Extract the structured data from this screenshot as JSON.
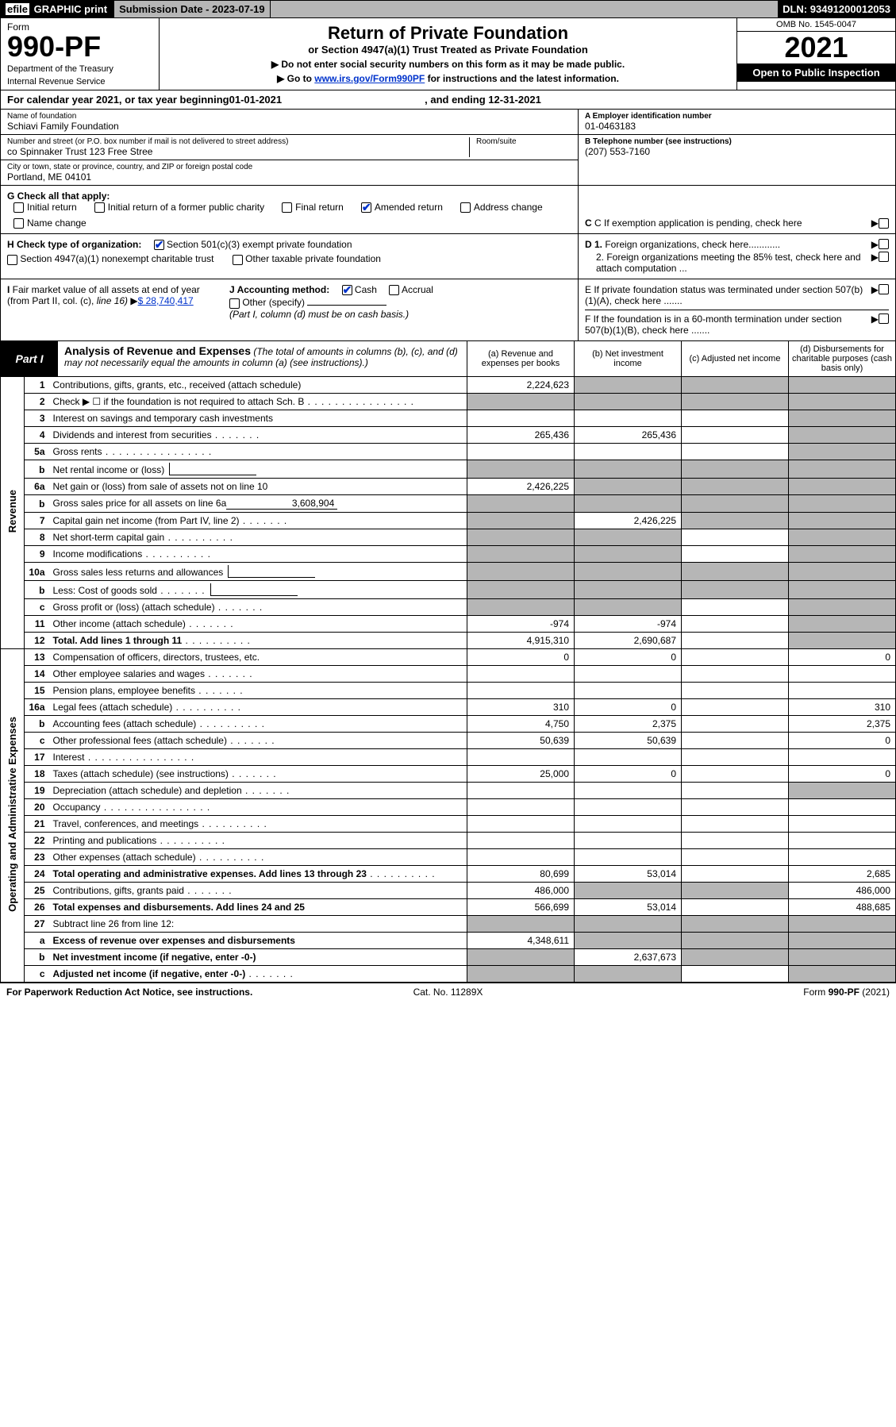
{
  "topbar": {
    "efile_prefix": "efile",
    "efile_rest": " GRAPHIC print",
    "submission_label": "Submission Date - ",
    "submission_date": "2023-07-19",
    "dln_label": "DLN: ",
    "dln": "93491200012053"
  },
  "header": {
    "form_word": "Form",
    "form_number": "990-PF",
    "dept1": "Department of the Treasury",
    "dept2": "Internal Revenue Service",
    "title": "Return of Private Foundation",
    "subtitle": "or Section 4947(a)(1) Trust Treated as Private Foundation",
    "note1": "▶ Do not enter social security numbers on this form as it may be made public.",
    "note2_pre": "▶ Go to ",
    "note2_link": "www.irs.gov/Form990PF",
    "note2_post": " for instructions and the latest information.",
    "omb": "OMB No. 1545-0047",
    "year": "2021",
    "open": "Open to Public Inspection"
  },
  "cal": {
    "pre": "For calendar year 2021, or tax year beginning ",
    "begin": "01-01-2021",
    "mid": ", and ending ",
    "end": "12-31-2021"
  },
  "id": {
    "name_lbl": "Name of foundation",
    "name": "Schiavi Family Foundation",
    "addr_lbl": "Number and street (or P.O. box number if mail is not delivered to street address)",
    "addr": "co Spinnaker Trust 123 Free Stree",
    "room_lbl": "Room/suite",
    "city_lbl": "City or town, state or province, country, and ZIP or foreign postal code",
    "city": "Portland, ME  04101",
    "a_lbl": "A Employer identification number",
    "a_val": "01-0463183",
    "b_lbl": "B Telephone number (see instructions)",
    "b_val": "(207) 553-7160",
    "c_lbl": "C If exemption application is pending, check here",
    "d1_lbl": "D 1. Foreign organizations, check here............",
    "d2_lbl": "2. Foreign organizations meeting the 85% test, check here and attach computation ...",
    "e_lbl": "E  If private foundation status was terminated under section 507(b)(1)(A), check here .......",
    "f_lbl": "F  If the foundation is in a 60-month termination under section 507(b)(1)(B), check here .......",
    "g_pre": "G Check all that apply:",
    "g_items": [
      "Initial return",
      "Initial return of a former public charity",
      "Final return",
      "Amended return",
      "Address change",
      "Name change"
    ],
    "g_checked_index": 3,
    "h_pre": "H Check type of organization:",
    "h_items": [
      "Section 501(c)(3) exempt private foundation",
      "Section 4947(a)(1) nonexempt charitable trust",
      "Other taxable private foundation"
    ],
    "h_checked_index": 0,
    "i_lbl": "I Fair market value of all assets at end of year (from Part II, col. (c), line 16)",
    "i_val": "$  28,740,417",
    "j_lbl": "J Accounting method:",
    "j_items": [
      "Cash",
      "Accrual",
      "Other (specify)"
    ],
    "j_checked_index": 0,
    "j_note": "(Part I, column (d) must be on cash basis.)"
  },
  "part1": {
    "label": "Part I",
    "title": "Analysis of Revenue and Expenses",
    "title_note": " (The total of amounts in columns (b), (c), and (d) may not necessarily equal the amounts in column (a) (see instructions).)",
    "col_a": "(a)   Revenue and expenses per books",
    "col_b": "(b)   Net investment income",
    "col_c": "(c)   Adjusted net income",
    "col_d": "(d)   Disbursements for charitable purposes (cash basis only)"
  },
  "sides": {
    "rev": "Revenue",
    "exp": "Operating and Administrative Expenses"
  },
  "rows": {
    "r1": {
      "n": "1",
      "d": "Contributions, gifts, grants, etc., received (attach schedule)",
      "a": "2,224,623",
      "b_sh": true,
      "c_sh": true,
      "d_sh": true
    },
    "r2": {
      "n": "2",
      "d": "Check ▶ ☐ if the foundation is not required to attach Sch. B",
      "a_sh": true,
      "b_sh": true,
      "c_sh": true,
      "d_sh": true,
      "dots": "dots"
    },
    "r3": {
      "n": "3",
      "d": "Interest on savings and temporary cash investments",
      "d_sh": true
    },
    "r4": {
      "n": "4",
      "d": "Dividends and interest from securities",
      "a": "265,436",
      "b": "265,436",
      "d_sh": true,
      "dots": "dots-s"
    },
    "r5a": {
      "n": "5a",
      "d": "Gross rents",
      "d_sh": true,
      "dots": "dots"
    },
    "r5b": {
      "n": "b",
      "d": "Net rental income or (loss)",
      "a_sh": true,
      "b_sh": true,
      "c_sh": true,
      "d_sh": true,
      "inline": true
    },
    "r6a": {
      "n": "6a",
      "d": "Net gain or (loss) from sale of assets not on line 10",
      "a": "2,426,225",
      "b_sh": true,
      "c_sh": true,
      "d_sh": true
    },
    "r6b": {
      "n": "b",
      "d": "Gross sales price for all assets on line 6a",
      "inline_val": "3,608,904",
      "a_sh": true,
      "b_sh": true,
      "c_sh": true,
      "d_sh": true
    },
    "r7": {
      "n": "7",
      "d": "Capital gain net income (from Part IV, line 2)",
      "a_sh": true,
      "b": "2,426,225",
      "c_sh": true,
      "d_sh": true,
      "dots": "dots-s"
    },
    "r8": {
      "n": "8",
      "d": "Net short-term capital gain",
      "a_sh": true,
      "b_sh": true,
      "d_sh": true,
      "dots": "dots-m"
    },
    "r9": {
      "n": "9",
      "d": "Income modifications",
      "a_sh": true,
      "b_sh": true,
      "d_sh": true,
      "dots": "dots-m"
    },
    "r10a": {
      "n": "10a",
      "d": "Gross sales less returns and allowances",
      "inline": true,
      "a_sh": true,
      "b_sh": true,
      "c_sh": true,
      "d_sh": true
    },
    "r10b": {
      "n": "b",
      "d": "Less: Cost of goods sold",
      "inline": true,
      "a_sh": true,
      "b_sh": true,
      "c_sh": true,
      "d_sh": true,
      "dots": "dots-s"
    },
    "r10c": {
      "n": "c",
      "d": "Gross profit or (loss) (attach schedule)",
      "a_sh": true,
      "b_sh": true,
      "d_sh": true,
      "dots": "dots-s"
    },
    "r11": {
      "n": "11",
      "d": "Other income (attach schedule)",
      "a": "-974",
      "b": "-974",
      "d_sh": true,
      "dots": "dots-s"
    },
    "r12": {
      "n": "12",
      "d": "Total. Add lines 1 through 11",
      "a": "4,915,310",
      "b": "2,690,687",
      "d_sh": true,
      "bold": true,
      "dots": "dots-m"
    },
    "r13": {
      "n": "13",
      "d": "Compensation of officers, directors, trustees, etc.",
      "a": "0",
      "b": "0",
      "dd": "0"
    },
    "r14": {
      "n": "14",
      "d": "Other employee salaries and wages",
      "dots": "dots-s"
    },
    "r15": {
      "n": "15",
      "d": "Pension plans, employee benefits",
      "dots": "dots-s"
    },
    "r16a": {
      "n": "16a",
      "d": "Legal fees (attach schedule)",
      "a": "310",
      "b": "0",
      "dd": "310",
      "dots": "dots-m"
    },
    "r16b": {
      "n": "b",
      "d": "Accounting fees (attach schedule)",
      "a": "4,750",
      "b": "2,375",
      "dd": "2,375",
      "dots": "dots-m"
    },
    "r16c": {
      "n": "c",
      "d": "Other professional fees (attach schedule)",
      "a": "50,639",
      "b": "50,639",
      "dd": "0",
      "dots": "dots-s"
    },
    "r17": {
      "n": "17",
      "d": "Interest",
      "dots": "dots"
    },
    "r18": {
      "n": "18",
      "d": "Taxes (attach schedule) (see instructions)",
      "a": "25,000",
      "b": "0",
      "dd": "0",
      "dots": "dots-s"
    },
    "r19": {
      "n": "19",
      "d": "Depreciation (attach schedule) and depletion",
      "d_sh": true,
      "dots": "dots-s"
    },
    "r20": {
      "n": "20",
      "d": "Occupancy",
      "dots": "dots"
    },
    "r21": {
      "n": "21",
      "d": "Travel, conferences, and meetings",
      "dots": "dots-m"
    },
    "r22": {
      "n": "22",
      "d": "Printing and publications",
      "dots": "dots-m"
    },
    "r23": {
      "n": "23",
      "d": "Other expenses (attach schedule)",
      "dots": "dots-m"
    },
    "r24": {
      "n": "24",
      "d": "Total operating and administrative expenses. Add lines 13 through 23",
      "a": "80,699",
      "b": "53,014",
      "dd": "2,685",
      "bold": true,
      "dots": "dots-m"
    },
    "r25": {
      "n": "25",
      "d": "Contributions, gifts, grants paid",
      "a": "486,000",
      "b_sh": true,
      "c_sh": true,
      "dd": "486,000",
      "dots": "dots-s"
    },
    "r26": {
      "n": "26",
      "d": "Total expenses and disbursements. Add lines 24 and 25",
      "a": "566,699",
      "b": "53,014",
      "dd": "488,685",
      "bold": true
    },
    "r27": {
      "n": "27",
      "d": "Subtract line 26 from line 12:",
      "a_sh": true,
      "b_sh": true,
      "c_sh": true,
      "d_sh": true
    },
    "r27a": {
      "n": "a",
      "d": "Excess of revenue over expenses and disbursements",
      "a": "4,348,611",
      "b_sh": true,
      "c_sh": true,
      "d_sh": true,
      "bold": true
    },
    "r27b": {
      "n": "b",
      "d": "Net investment income (if negative, enter -0-)",
      "a_sh": true,
      "b": "2,637,673",
      "c_sh": true,
      "d_sh": true,
      "bold": true
    },
    "r27c": {
      "n": "c",
      "d": "Adjusted net income (if negative, enter -0-)",
      "a_sh": true,
      "b_sh": true,
      "d_sh": true,
      "bold": true,
      "dots": "dots-s"
    }
  },
  "footer": {
    "left": "For Paperwork Reduction Act Notice, see instructions.",
    "cat": "Cat. No. 11289X",
    "form": "Form 990-PF (2021)"
  },
  "colors": {
    "shade": "#b6b6b6",
    "link": "#0033cc"
  }
}
